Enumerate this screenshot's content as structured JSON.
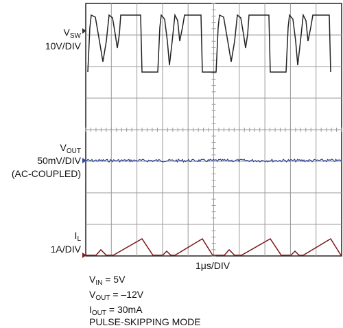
{
  "labels": {
    "vsw": {
      "main": "V",
      "sub": "SW",
      "scale": "10V/DIV"
    },
    "vout": {
      "main": "V",
      "sub": "OUT",
      "scale": "50mV/DIV",
      "note": "(AC-COUPLED)"
    },
    "il": {
      "main": "I",
      "sub": "L",
      "scale": "1A/DIV"
    }
  },
  "timebase": "1μs/DIV",
  "conditions": [
    {
      "main": "V",
      "sub": "IN",
      "rest": " = 5V"
    },
    {
      "main": "V",
      "sub": "OUT",
      "rest": " = –12V"
    },
    {
      "main": "I",
      "sub": "OUT",
      "rest": " = 30mA"
    },
    {
      "text": "PULSE-SKIPPING MODE"
    }
  ]
}
